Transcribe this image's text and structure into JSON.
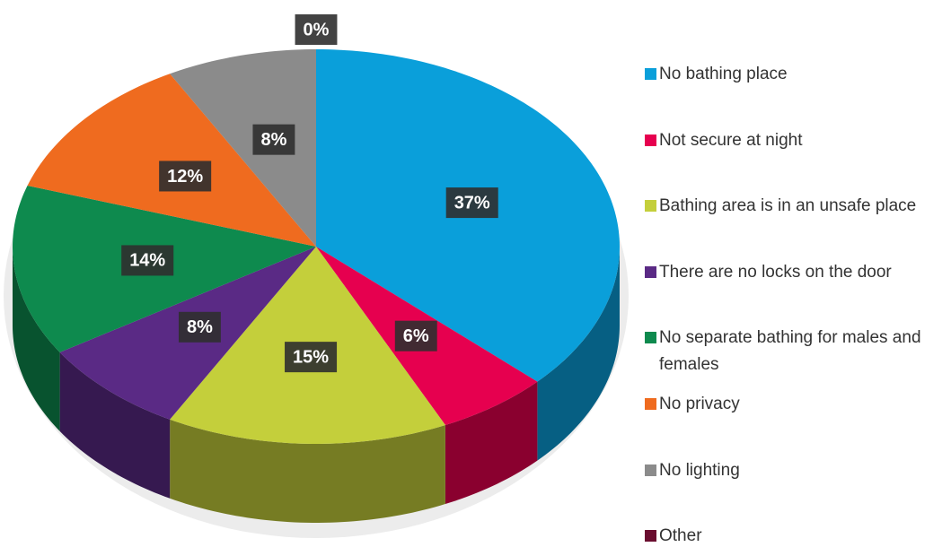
{
  "chart_data": {
    "type": "pie",
    "categories": [
      "No bathing place",
      "Not secure at night",
      "Bathing area is in an unsafe place",
      "There are no locks on the door",
      "No separate bathing for males and females",
      "No privacy",
      "No lighting",
      "Other"
    ],
    "values": [
      37,
      6,
      15,
      8,
      14,
      12,
      8,
      0
    ],
    "value_labels": [
      "37%",
      "6%",
      "15%",
      "8%",
      "14%",
      "12%",
      "8%",
      "0%"
    ],
    "colors": [
      "#0a9fda",
      "#e6004f",
      "#c4cf3b",
      "#5a2a85",
      "#0e8a4e",
      "#ef6b1f",
      "#8b8b8b",
      "#6a0d2f"
    ],
    "legend": "right"
  }
}
